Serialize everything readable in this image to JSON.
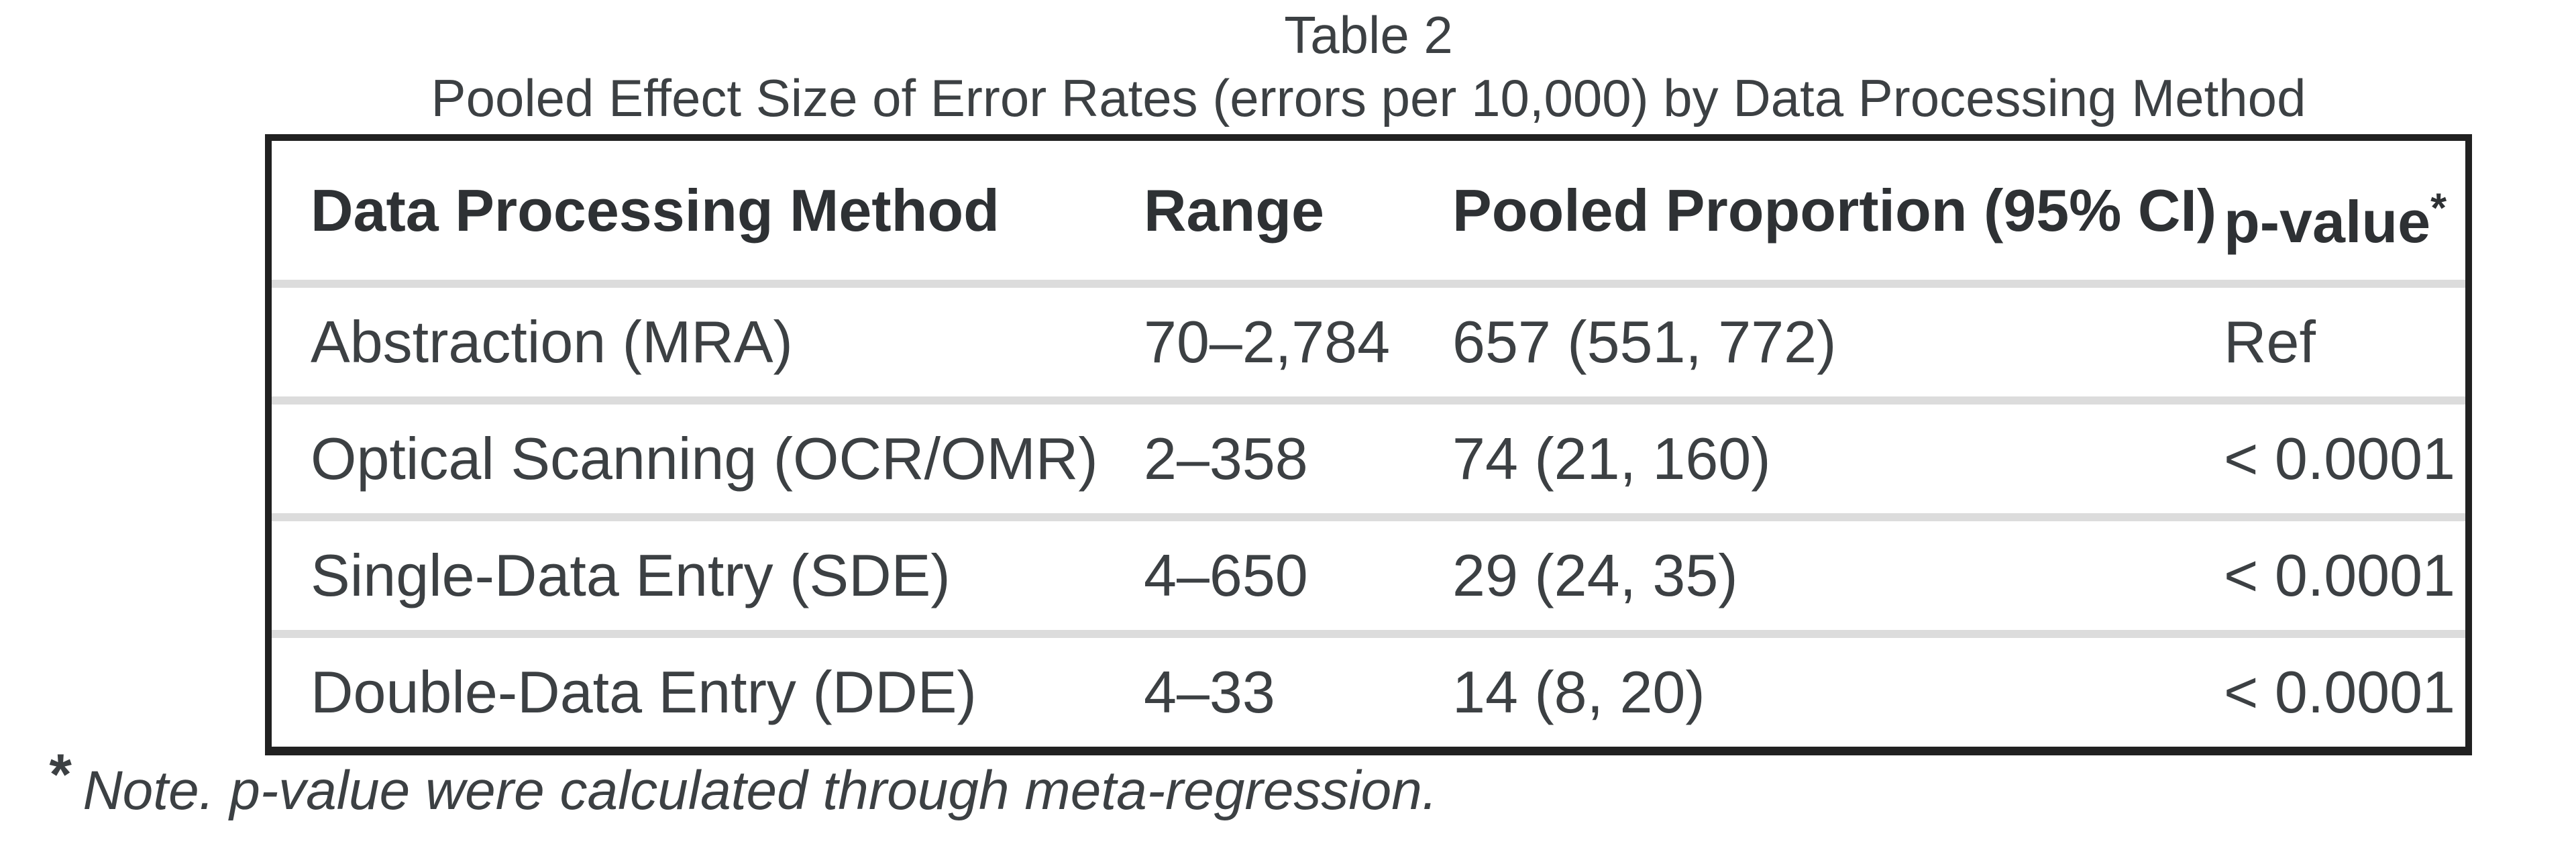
{
  "title": "Table 2",
  "subtitle": "Pooled Effect Size of Error Rates (errors per 10,000) by Data Processing Method",
  "table": {
    "columns": [
      "Data Processing Method",
      "Range",
      "Pooled Proportion (95% CI)",
      "p-value"
    ],
    "p_value_marker": "*",
    "rows": [
      {
        "method": "Abstraction (MRA)",
        "range": "70–2,784",
        "pooled": "657 (551, 772)",
        "p": "Ref"
      },
      {
        "method": "Optical Scanning (OCR/OMR)",
        "range": "2–358",
        "pooled": "74 (21, 160)",
        "p": "< 0.0001"
      },
      {
        "method": "Single-Data Entry (SDE)",
        "range": "4–650",
        "pooled": "29 (24, 35)",
        "p": "< 0.0001"
      },
      {
        "method": "Double-Data Entry (DDE)",
        "range": "4–33",
        "pooled": "14 (8, 20)",
        "p": "< 0.0001"
      }
    ]
  },
  "footnote": {
    "marker": "*",
    "text": "Note. p-value were calculated through meta-regression."
  },
  "colors": {
    "background": "#ffffff",
    "outer_border": "#212121",
    "row_divider": "#dcdcdc",
    "header_text": "#2e3134",
    "body_text": "#3c4043"
  }
}
